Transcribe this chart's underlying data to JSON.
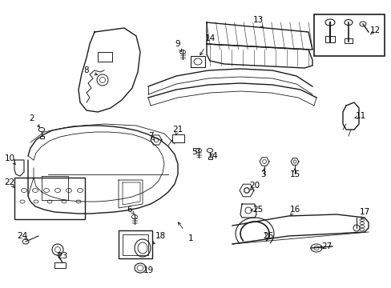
{
  "background_color": "#ffffff",
  "fig_width": 4.89,
  "fig_height": 3.6,
  "dpi": 100,
  "line_color": "#1a1a1a",
  "label_color": "#000000",
  "label_fontsize": 7.5
}
